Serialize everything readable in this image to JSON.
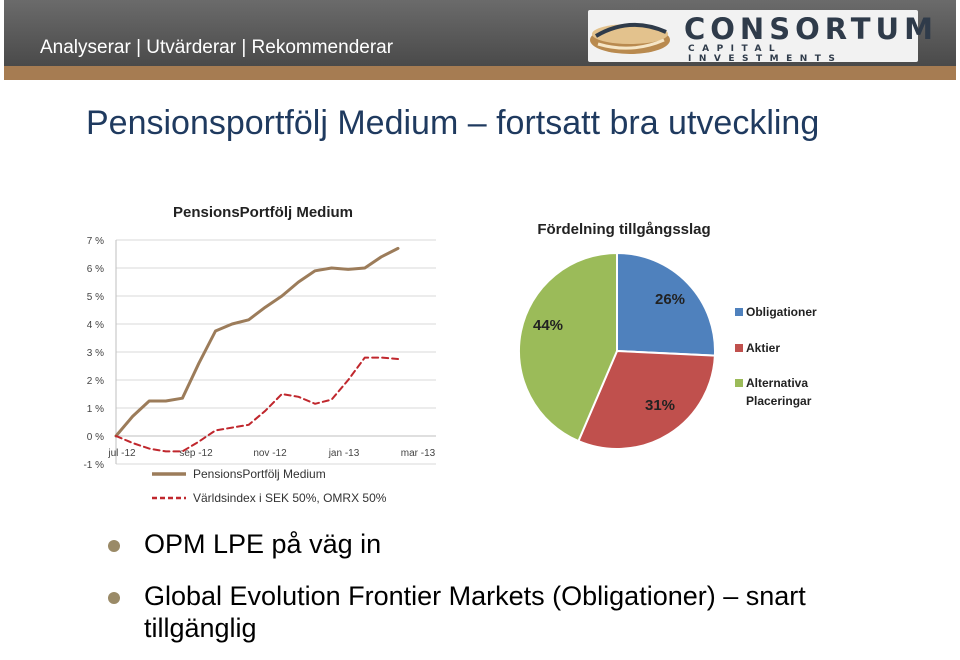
{
  "header": {
    "tagline": "Analyserar | Utvärderar | Rekommenderar",
    "logo_name": "CONSORTUM",
    "logo_sub": "CAPITAL INVESTMENTS"
  },
  "page_title": "Pensionsportfölj Medium – fortsatt bra utveckling",
  "colors": {
    "header_bg": "#5a5a5a",
    "accent_strip": "#a67c52",
    "title": "#1f3a5f",
    "portfolio_line": "#9c7c5a",
    "index_line": "#c0272d",
    "obligationer": "#4f81bd",
    "aktier": "#c0504d",
    "alternativa": "#9bbb59"
  },
  "chart_data": [
    {
      "type": "line",
      "title": "PensionsPortfölj Medium",
      "x_ticks": [
        "jul -12",
        "sep -12",
        "nov -12",
        "jan -13",
        "mar -13"
      ],
      "y_ticks": [
        "-1 %",
        "0 %",
        "1 %",
        "2 %",
        "3 %",
        "4 %",
        "5 %",
        "6 %",
        "7 %"
      ],
      "ylim": [
        -1,
        7
      ],
      "grid": true,
      "legend_position": "bottom",
      "x": [
        0,
        0.5,
        1,
        1.5,
        2,
        2.5,
        3,
        3.5,
        4,
        4.5,
        5,
        5.5,
        6,
        6.5,
        7,
        7.5,
        8,
        8.5
      ],
      "series": [
        {
          "name": "PensionsPortfölj Medium",
          "values": [
            0.0,
            0.7,
            1.25,
            1.25,
            1.35,
            2.6,
            3.75,
            4.0,
            4.15,
            4.6,
            5.0,
            5.5,
            5.9,
            6.0,
            5.95,
            6.0,
            6.4,
            6.7
          ]
        },
        {
          "name": "Världsindex i SEK 50%, OMRX 50%",
          "values": [
            0.0,
            -0.25,
            -0.45,
            -0.55,
            -0.55,
            -0.2,
            0.2,
            0.3,
            0.4,
            0.9,
            1.5,
            1.4,
            1.15,
            1.3,
            2.0,
            2.8,
            2.8,
            2.75
          ]
        }
      ]
    },
    {
      "type": "pie",
      "title": "Fördelning tillgångsslag",
      "legend_position": "right",
      "slices": [
        {
          "name": "Obligationer",
          "value": 26,
          "label": "26%"
        },
        {
          "name": "Aktier",
          "value": 31,
          "label": "31%"
        },
        {
          "name": "Alternativa Placeringar",
          "value": 44,
          "label": "44%"
        }
      ]
    }
  ],
  "bullets": [
    "OPM LPE  på väg in",
    "Global Evolution Frontier Markets (Obligationer) – snart tillgänglig"
  ]
}
